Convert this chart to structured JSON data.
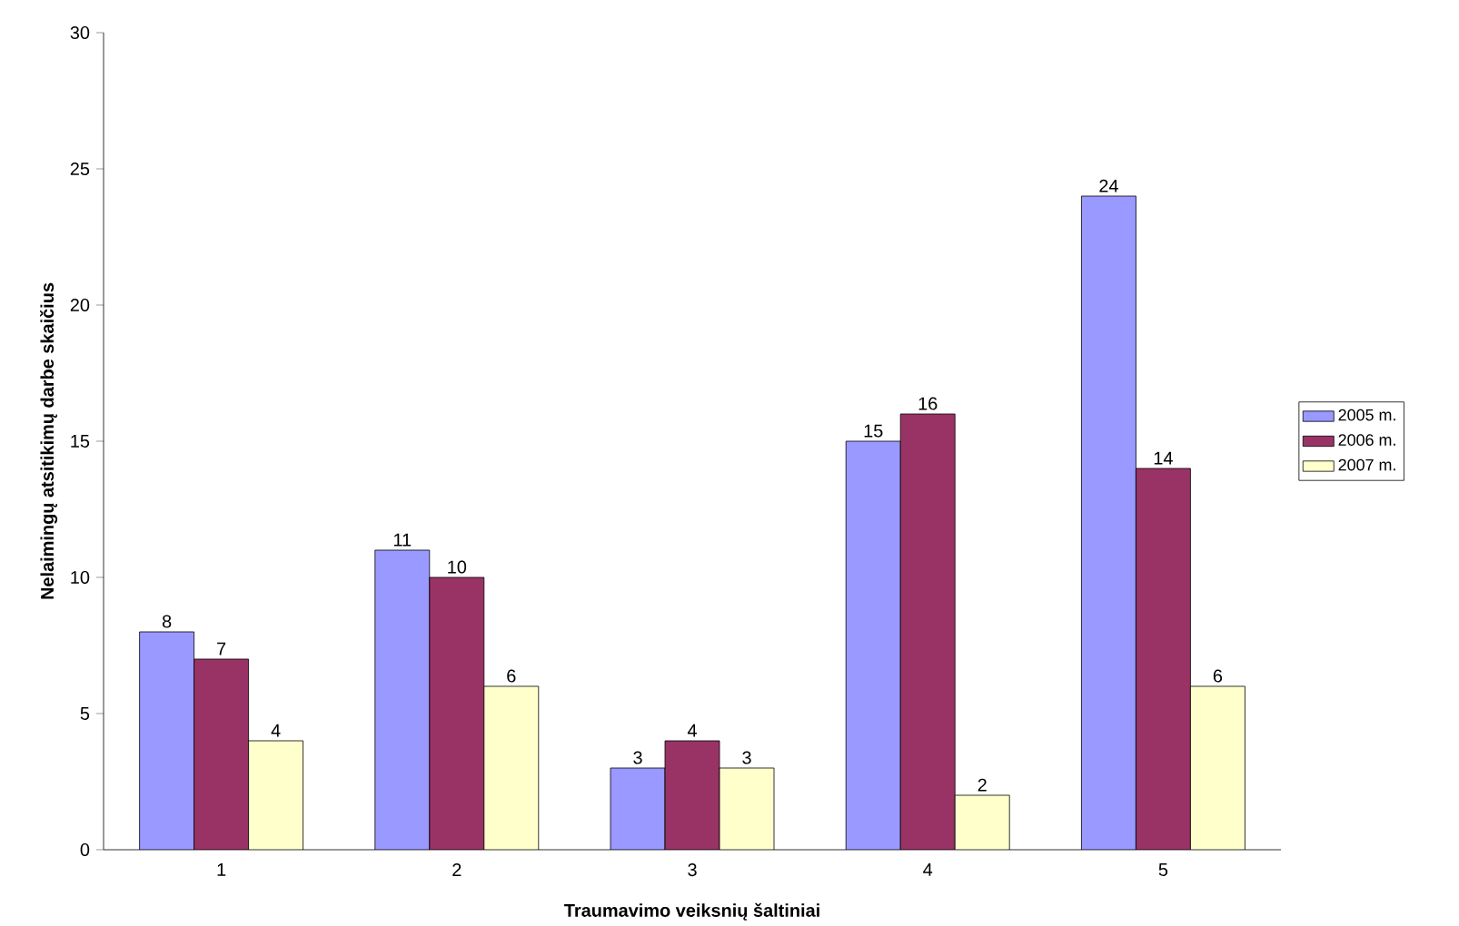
{
  "chart_data": {
    "type": "bar",
    "xlabel": "Traumavimo veiksnių šaltiniai",
    "ylabel": "Nelaimingų atsitikimų darbe skaičius",
    "categories": [
      "1",
      "2",
      "3",
      "4",
      "5"
    ],
    "series": [
      {
        "name": "2005 m.",
        "color": "#9999ff",
        "values": [
          8,
          11,
          3,
          15,
          24
        ]
      },
      {
        "name": "2006 m.",
        "color": "#993366",
        "values": [
          7,
          10,
          4,
          16,
          14
        ]
      },
      {
        "name": "2007 m.",
        "color": "#ffffcc",
        "values": [
          4,
          6,
          3,
          2,
          6
        ]
      }
    ],
    "ylim": [
      0,
      30
    ],
    "yticks": [
      0,
      5,
      10,
      15,
      20,
      25,
      30
    ],
    "data_labels": true,
    "legend": "right",
    "grid": false
  }
}
